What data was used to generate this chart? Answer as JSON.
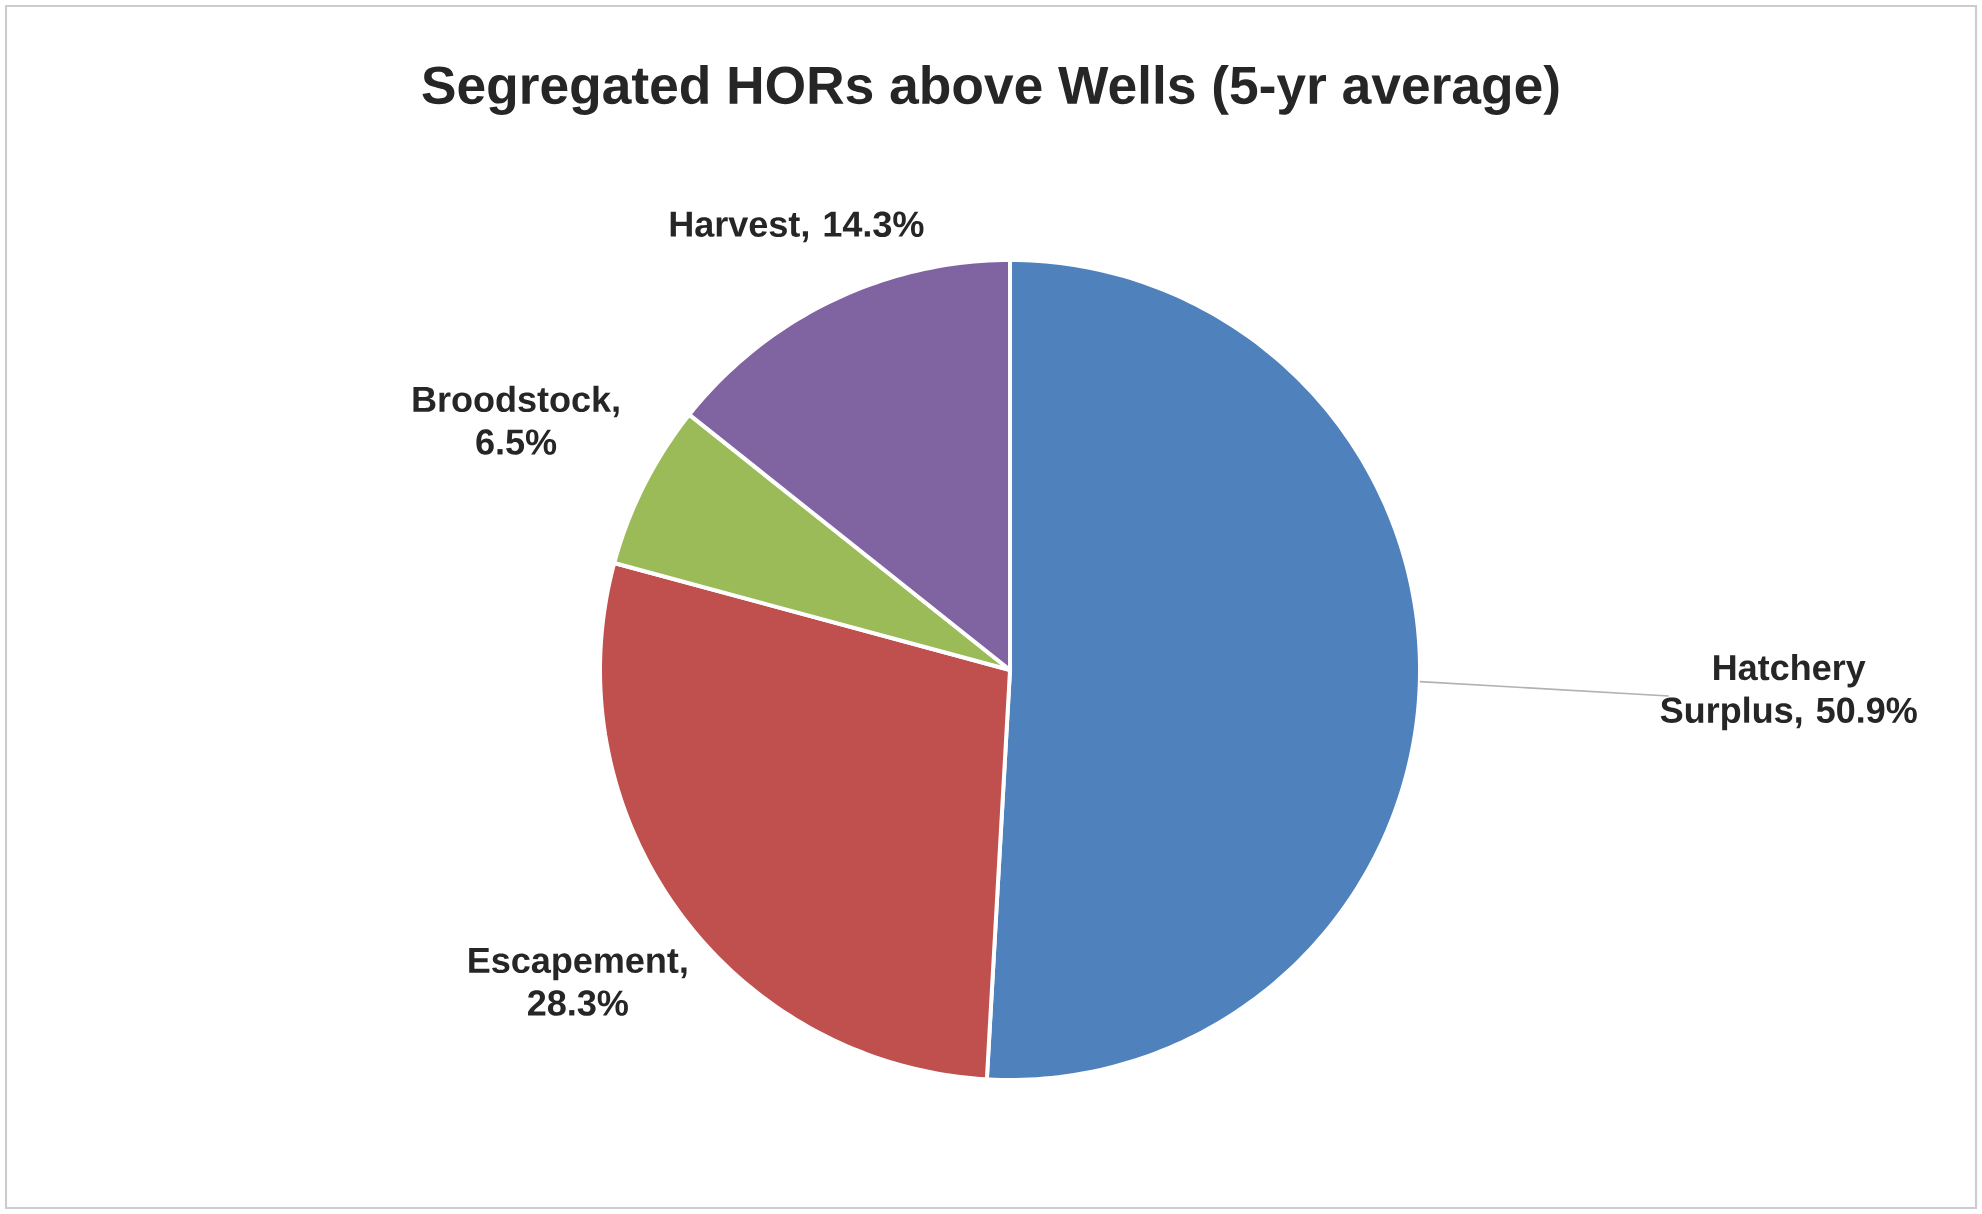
{
  "chart_data": {
    "type": "pie",
    "title": "Segregated HORs above Wells (5-yr average)",
    "categories": [
      "Hatchery Surplus",
      "Escapement",
      "Broodstock",
      "Harvest"
    ],
    "values": [
      50.9,
      28.3,
      6.5,
      14.3
    ],
    "colors": [
      "#4f81bd",
      "#c0504d",
      "#9bbb59",
      "#8064a2"
    ],
    "value_labels": [
      ", 50.9%",
      ", 28.3%",
      ", 6.5%",
      ", 14.3%"
    ]
  }
}
